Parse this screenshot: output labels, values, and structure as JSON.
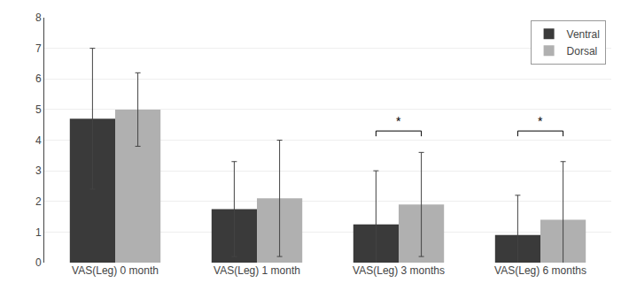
{
  "chart_data": {
    "type": "bar",
    "categories": [
      "VAS(Leg) 0 month",
      "VAS(Leg) 1 month",
      "VAS(Leg) 3 months",
      "VAS(Leg) 6 months"
    ],
    "series": [
      {
        "name": "Ventral",
        "color": "#3a3a3a",
        "values": [
          4.7,
          1.75,
          1.25,
          0.9
        ],
        "errors": [
          2.3,
          1.55,
          1.75,
          1.3
        ]
      },
      {
        "name": "Dorsal",
        "color": "#b0b0b0",
        "values": [
          5.0,
          2.1,
          1.9,
          1.4
        ],
        "errors": [
          1.2,
          1.9,
          1.7,
          1.9
        ]
      }
    ],
    "ylim": [
      0,
      8
    ],
    "yticks": [
      0,
      1,
      2,
      3,
      4,
      5,
      6,
      7,
      8
    ],
    "grid": true,
    "legend": "upper right",
    "annotations": [
      {
        "text": "*",
        "category": "VAS(Leg) 3 months",
        "y": 4.3
      },
      {
        "text": "*",
        "category": "VAS(Leg) 6 months",
        "y": 4.3
      }
    ]
  }
}
